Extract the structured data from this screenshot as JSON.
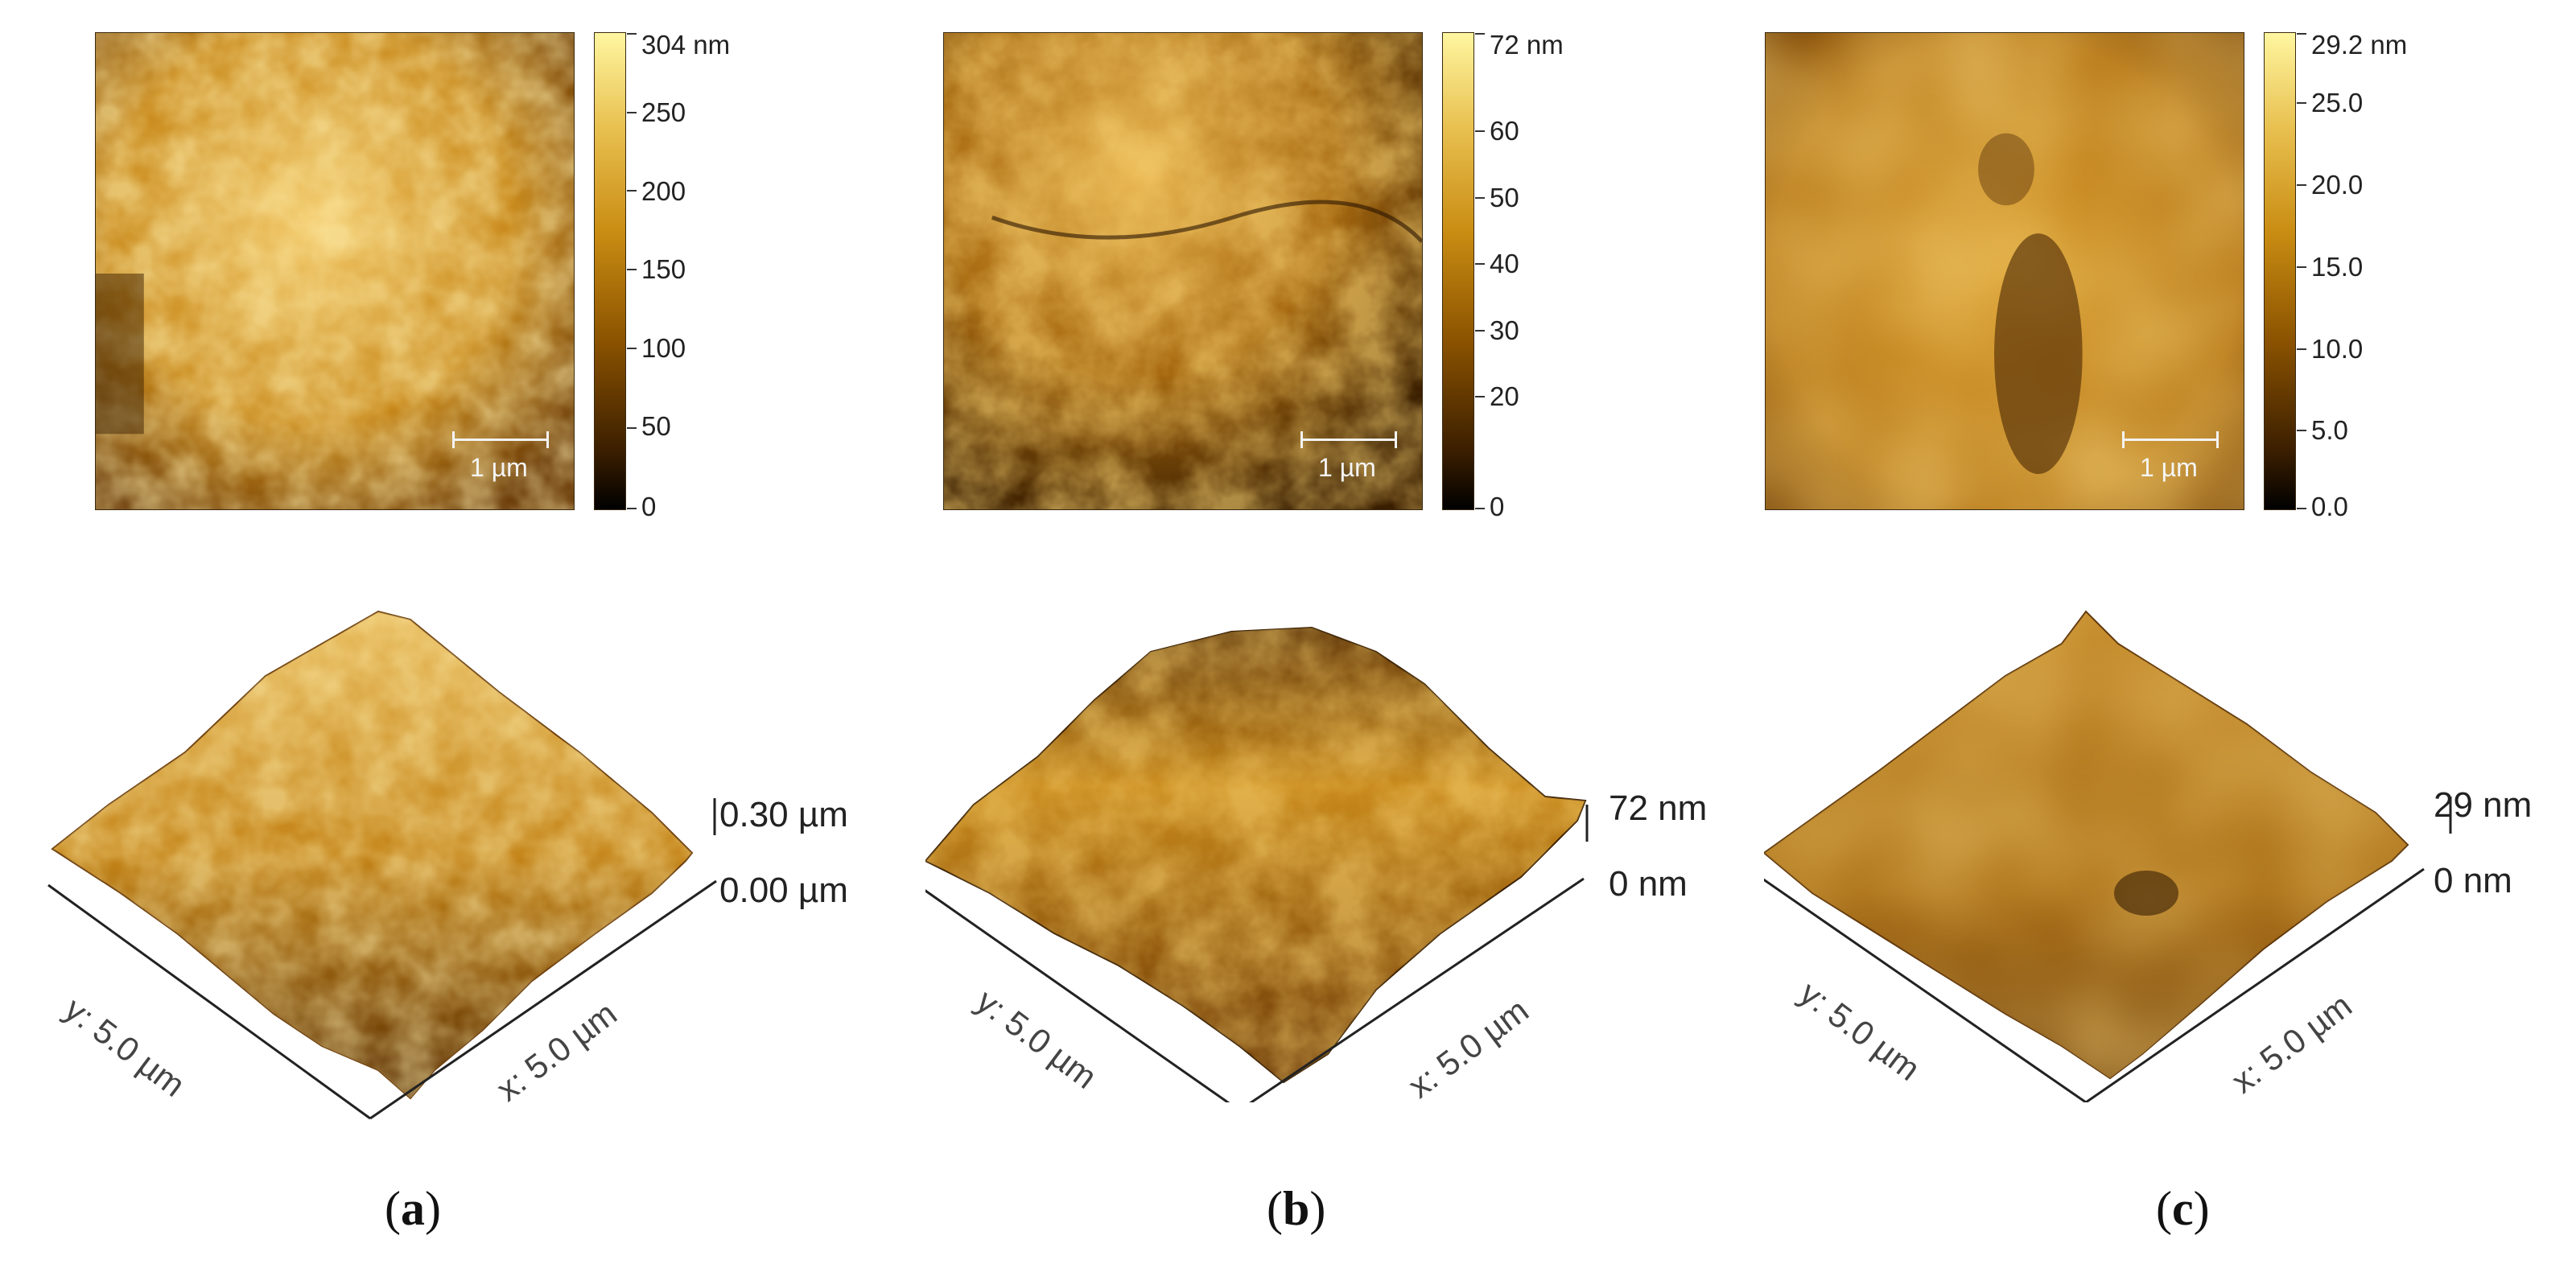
{
  "panels": [
    {
      "caption_letter": "a",
      "colorbar_ticks": [
        "304 nm",
        "250",
        "200",
        "150",
        "100",
        "50",
        "0"
      ],
      "scale_bar_label": "1 µm",
      "z_max_label": "0.30 µm",
      "z_min_label": "0.00 µm",
      "x_axis_label": "x: 5.0 µm",
      "y_axis_label": "y: 5.0 µm"
    },
    {
      "caption_letter": "b",
      "colorbar_ticks": [
        "72 nm",
        "60",
        "50",
        "40",
        "30",
        "20",
        "0"
      ],
      "scale_bar_label": "1 µm",
      "z_max_label": "72 nm",
      "z_min_label": "0 nm",
      "x_axis_label": "x: 5.0 µm",
      "y_axis_label": "y: 5.0 µm"
    },
    {
      "caption_letter": "c",
      "colorbar_ticks": [
        "29.2 nm",
        "25.0",
        "20.0",
        "15.0",
        "10.0",
        "5.0",
        "0.0"
      ],
      "scale_bar_label": "1 µm",
      "z_max_label": "29 nm",
      "z_min_label": "0 nm",
      "x_axis_label": "x: 5.0 µm",
      "y_axis_label": "y: 5.0 µm"
    }
  ],
  "colors": {
    "colormap_dark": "#000000",
    "colormap_mid": "#c98c12",
    "colormap_light": "#fff6a0"
  }
}
